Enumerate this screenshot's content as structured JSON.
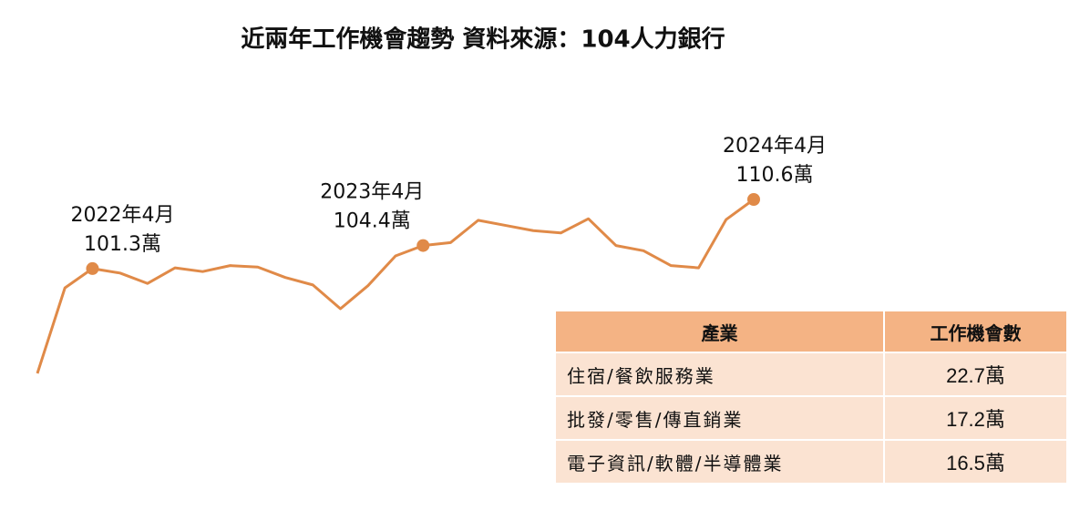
{
  "chart_data": {
    "type": "line",
    "title": "近兩年工作機會趨勢 資料來源：104人力銀行",
    "categories": [
      null,
      null,
      "2022年4月",
      null,
      null,
      null,
      null,
      null,
      null,
      null,
      null,
      null,
      null,
      null,
      "2023年4月",
      null,
      null,
      null,
      null,
      null,
      null,
      null,
      null,
      null,
      null,
      null,
      "2024年4月"
    ],
    "series": [
      {
        "color": "#e08a48",
        "values": [
          87.2,
          98.7,
          101.3,
          100.7,
          99.3,
          101.4,
          100.9,
          101.7,
          101.5,
          100.1,
          99.1,
          95.9,
          99.0,
          103.0,
          104.4,
          104.8,
          107.8,
          107.1,
          106.4,
          106.1,
          108.0,
          104.4,
          103.7,
          101.7,
          101.4,
          107.9,
          110.6
        ],
        "value_labels": [
          null,
          null,
          "101.3萬",
          null,
          null,
          null,
          null,
          null,
          null,
          null,
          null,
          null,
          null,
          null,
          "104.4萬",
          null,
          null,
          null,
          null,
          null,
          null,
          null,
          null,
          null,
          null,
          null,
          "110.6萬"
        ]
      }
    ]
  },
  "table": {
    "header": [
      "產業",
      "工作機會數"
    ],
    "rows": [
      [
        "住宿/餐飲服務業",
        "22.7萬"
      ],
      [
        "批發/零售/傳直銷業",
        "17.2萬"
      ],
      [
        "電子資訊/軟體/半導體業",
        "16.5萬"
      ]
    ]
  }
}
